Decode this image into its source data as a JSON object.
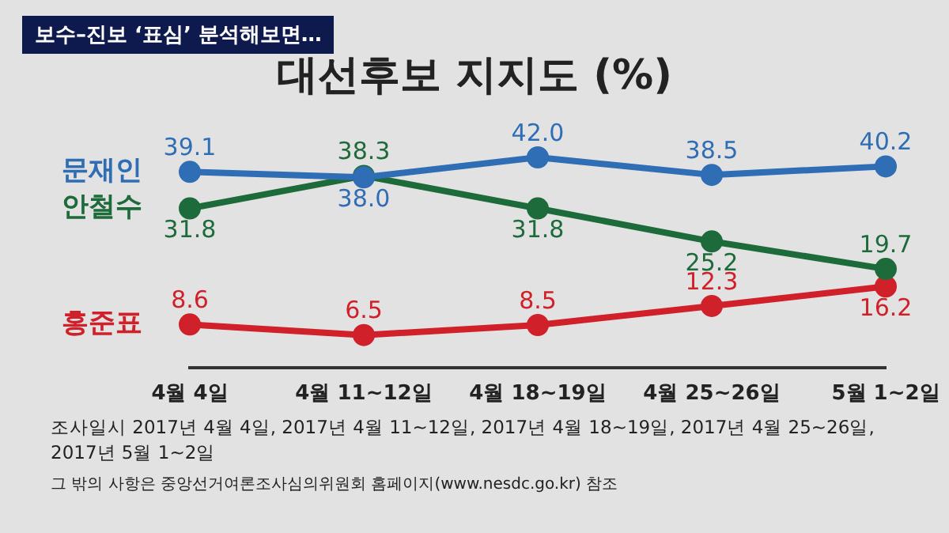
{
  "chart_data": {
    "type": "line",
    "title": "대선후보 지지도 (%)",
    "subtitle": "보수–진보 ‘표심’ 분석해보면…",
    "categories": [
      "4월 4일",
      "4월 11~12일",
      "4월 18~19일",
      "4월 25~26일",
      "5월 1~2일"
    ],
    "series": [
      {
        "name": "문재인",
        "color": "#2f6db5",
        "values": [
          39.1,
          38.0,
          42.0,
          38.5,
          40.2
        ],
        "value_labels": [
          "39.1",
          "38.0",
          "42.0",
          "38.5",
          "40.2"
        ]
      },
      {
        "name": "안철수",
        "color": "#1d6b3a",
        "values": [
          31.8,
          38.3,
          31.8,
          25.2,
          19.7
        ],
        "value_labels": [
          "31.8",
          "38.3",
          "31.8",
          "25.2",
          "19.7"
        ]
      },
      {
        "name": "홍준표",
        "color": "#d0212b",
        "values": [
          8.6,
          6.5,
          8.5,
          12.3,
          16.2
        ],
        "value_labels": [
          "8.6",
          "6.5",
          "8.5",
          "12.3",
          "16.2"
        ]
      }
    ],
    "marker": "circle",
    "grid": false,
    "legend": false,
    "annotations": [
      "조사일시 2017년 4월 4일, 2017년 4월 11~12일, 2017년 4월 18~19일, 2017년 4월 25~26일, 2017년 5월 1~2일",
      "그 밖의 사항은 중앙선거여론조사심의위원회 홈페이지(www.nesdc.go.kr) 참조"
    ]
  }
}
